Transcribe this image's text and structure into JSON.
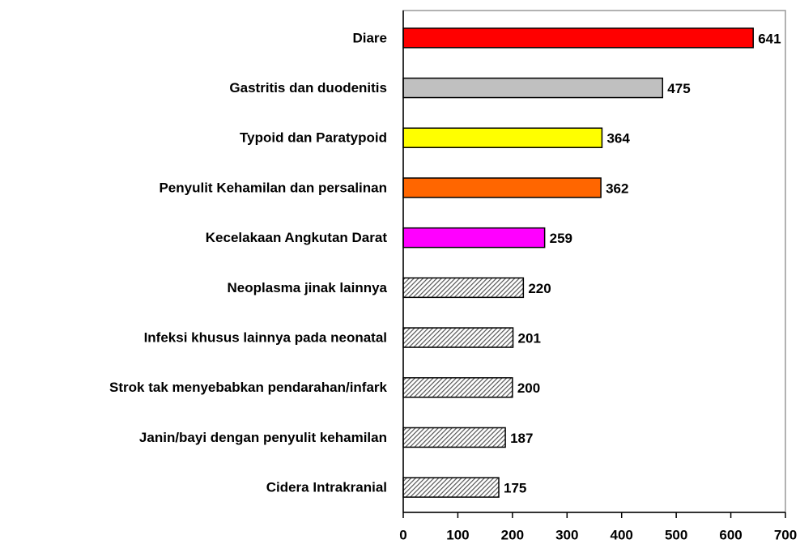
{
  "chart_data": {
    "type": "barh",
    "categories": [
      "Diare",
      "Gastritis dan duodenitis",
      "Typoid dan Paratypoid",
      "Penyulit Kehamilan dan persalinan",
      "Kecelakaan Angkutan Darat",
      "Neoplasma jinak lainnya",
      "Infeksi khusus lainnya pada neonatal",
      "Strok tak menyebabkan pendarahan/infark",
      "Janin/bayi dengan penyulit kehamilan",
      "Cidera Intrakranial"
    ],
    "values": [
      641,
      475,
      364,
      362,
      259,
      220,
      201,
      200,
      187,
      175
    ],
    "colors": [
      "#ff0000",
      "#c0c0c0",
      "#ffff00",
      "#ff6600",
      "#ff00ff",
      "#808080",
      "#808080",
      "#808080",
      "#808080",
      "#808080"
    ],
    "hatched": [
      false,
      false,
      false,
      false,
      false,
      true,
      true,
      true,
      true,
      true
    ],
    "xlim": [
      0,
      700
    ],
    "xticks": [
      0,
      100,
      200,
      300,
      400,
      500,
      600,
      700
    ]
  }
}
